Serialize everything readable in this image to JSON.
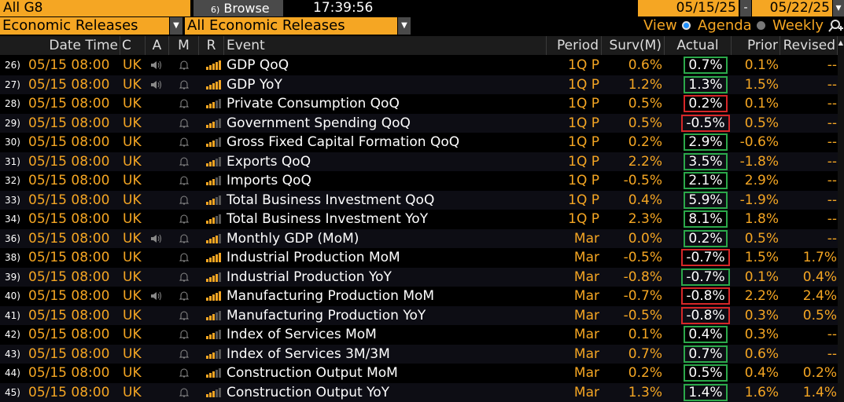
{
  "toolbar": {
    "group": "All G8",
    "browse_num": "6)",
    "browse_label": "Browse",
    "time": "17:39:56",
    "start_date": "05/15/25",
    "end_date": "05/22/25",
    "date_sep": "-"
  },
  "filters": {
    "category": "Economic Releases",
    "subcategory": "All Economic Releases",
    "view_label": "View",
    "agenda_label": "Agenda",
    "weekly_label": "Weekly",
    "selected_view": "Agenda"
  },
  "columns": {
    "datetime": "Date Time",
    "c": "C",
    "a": "A",
    "m": "M",
    "r": "R",
    "event": "Event",
    "period": "Period",
    "surv": "Surv(M)",
    "actual": "Actual",
    "prior": "Prior",
    "revised": "Revised"
  },
  "colors": {
    "accent": "#f5a623",
    "beat": "#2ba84a",
    "miss": "#d62728"
  },
  "rows": [
    {
      "idx": "26)",
      "dt": "05/15 08:00",
      "c": "UK",
      "speaker": true,
      "rel": 5,
      "event": "GDP QoQ",
      "period": "1Q P",
      "surv": "0.6%",
      "actual": "0.7%",
      "status": "beat",
      "prior": "0.1%",
      "revised": "--"
    },
    {
      "idx": "27)",
      "dt": "05/15 08:00",
      "c": "UK",
      "speaker": true,
      "rel": 5,
      "event": "GDP YoY",
      "period": "1Q P",
      "surv": "1.2%",
      "actual": "1.3%",
      "status": "beat",
      "prior": "1.5%",
      "revised": "--"
    },
    {
      "idx": "28)",
      "dt": "05/15 08:00",
      "c": "UK",
      "speaker": false,
      "rel": 3,
      "event": "Private Consumption QoQ",
      "period": "1Q P",
      "surv": "0.5%",
      "actual": "0.2%",
      "status": "miss",
      "prior": "0.1%",
      "revised": "--"
    },
    {
      "idx": "29)",
      "dt": "05/15 08:00",
      "c": "UK",
      "speaker": false,
      "rel": 3,
      "event": "Government Spending QoQ",
      "period": "1Q P",
      "surv": "0.5%",
      "actual": "-0.5%",
      "status": "miss",
      "prior": "0.5%",
      "revised": "--"
    },
    {
      "idx": "30)",
      "dt": "05/15 08:00",
      "c": "UK",
      "speaker": false,
      "rel": 3,
      "event": "Gross Fixed Capital Formation QoQ",
      "period": "1Q P",
      "surv": "0.2%",
      "actual": "2.9%",
      "status": "beat",
      "prior": "-0.6%",
      "revised": "--"
    },
    {
      "idx": "31)",
      "dt": "05/15 08:00",
      "c": "UK",
      "speaker": false,
      "rel": 3,
      "event": "Exports QoQ",
      "period": "1Q P",
      "surv": "2.2%",
      "actual": "3.5%",
      "status": "beat",
      "prior": "-1.8%",
      "revised": "--"
    },
    {
      "idx": "32)",
      "dt": "05/15 08:00",
      "c": "UK",
      "speaker": false,
      "rel": 3,
      "event": "Imports QoQ",
      "period": "1Q P",
      "surv": "-0.5%",
      "actual": "2.1%",
      "status": "beat",
      "prior": "2.9%",
      "revised": "--"
    },
    {
      "idx": "33)",
      "dt": "05/15 08:00",
      "c": "UK",
      "speaker": false,
      "rel": 3,
      "event": "Total Business Investment QoQ",
      "period": "1Q P",
      "surv": "0.4%",
      "actual": "5.9%",
      "status": "beat",
      "prior": "-1.9%",
      "revised": "--"
    },
    {
      "idx": "34)",
      "dt": "05/15 08:00",
      "c": "UK",
      "speaker": false,
      "rel": 3,
      "event": "Total Business Investment YoY",
      "period": "1Q P",
      "surv": "2.3%",
      "actual": "8.1%",
      "status": "beat",
      "prior": "1.8%",
      "revised": "--"
    },
    {
      "idx": "36)",
      "dt": "05/15 08:00",
      "c": "UK",
      "speaker": true,
      "rel": 4,
      "event": "Monthly GDP (MoM)",
      "period": "Mar",
      "surv": "0.0%",
      "actual": "0.2%",
      "status": "beat",
      "prior": "0.5%",
      "revised": "--"
    },
    {
      "idx": "38)",
      "dt": "05/15 08:00",
      "c": "UK",
      "speaker": false,
      "rel": 5,
      "event": "Industrial Production MoM",
      "period": "Mar",
      "surv": "-0.5%",
      "actual": "-0.7%",
      "status": "miss",
      "prior": "1.5%",
      "revised": "1.7%"
    },
    {
      "idx": "39)",
      "dt": "05/15 08:00",
      "c": "UK",
      "speaker": false,
      "rel": 4,
      "event": "Industrial Production YoY",
      "period": "Mar",
      "surv": "-0.8%",
      "actual": "-0.7%",
      "status": "beat",
      "prior": "0.1%",
      "revised": "0.4%"
    },
    {
      "idx": "40)",
      "dt": "05/15 08:00",
      "c": "UK",
      "speaker": true,
      "rel": 5,
      "event": "Manufacturing Production MoM",
      "period": "Mar",
      "surv": "-0.7%",
      "actual": "-0.8%",
      "status": "miss",
      "prior": "2.2%",
      "revised": "2.4%"
    },
    {
      "idx": "41)",
      "dt": "05/15 08:00",
      "c": "UK",
      "speaker": false,
      "rel": 3,
      "event": "Manufacturing Production YoY",
      "period": "Mar",
      "surv": "-0.5%",
      "actual": "-0.8%",
      "status": "miss",
      "prior": "0.3%",
      "revised": "0.5%"
    },
    {
      "idx": "42)",
      "dt": "05/15 08:00",
      "c": "UK",
      "speaker": false,
      "rel": 3,
      "event": "Index of Services MoM",
      "period": "Mar",
      "surv": "0.1%",
      "actual": "0.4%",
      "status": "beat",
      "prior": "0.3%",
      "revised": "--"
    },
    {
      "idx": "43)",
      "dt": "05/15 08:00",
      "c": "UK",
      "speaker": false,
      "rel": 3,
      "event": "Index of Services 3M/3M",
      "period": "Mar",
      "surv": "0.7%",
      "actual": "0.7%",
      "status": "beat",
      "prior": "0.6%",
      "revised": "--"
    },
    {
      "idx": "44)",
      "dt": "05/15 08:00",
      "c": "UK",
      "speaker": false,
      "rel": 3,
      "event": "Construction Output MoM",
      "period": "Mar",
      "surv": "0.2%",
      "actual": "0.5%",
      "status": "beat",
      "prior": "0.4%",
      "revised": "0.2%"
    },
    {
      "idx": "45)",
      "dt": "05/15 08:00",
      "c": "UK",
      "speaker": false,
      "rel": 3,
      "event": "Construction Output YoY",
      "period": "Mar",
      "surv": "1.3%",
      "actual": "1.4%",
      "status": "beat",
      "prior": "1.6%",
      "revised": "1.4%"
    }
  ]
}
